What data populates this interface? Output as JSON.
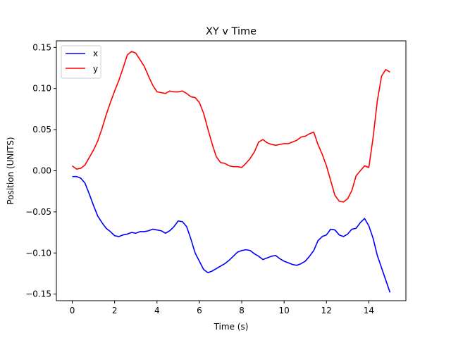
{
  "chart_data": {
    "type": "line",
    "title": "XY v Time",
    "xlabel": "Time (s)",
    "ylabel": "Position (UNITS)",
    "xlim": [
      -0.75,
      15.75
    ],
    "ylim": [
      -0.158,
      0.158
    ],
    "xticks": [
      0,
      2,
      4,
      6,
      8,
      10,
      12,
      14
    ],
    "yticks": [
      -0.15,
      -0.1,
      -0.05,
      0.0,
      0.05,
      0.1,
      0.15
    ],
    "ytick_labels": [
      "−0.15",
      "−0.10",
      "−0.05",
      "0.00",
      "0.05",
      "0.10",
      "0.15"
    ],
    "grid": false,
    "legend_position": "top-left",
    "series": [
      {
        "name": "x",
        "color": "#0000ff",
        "x": [
          0,
          0.2,
          0.4,
          0.6,
          0.8,
          1.0,
          1.2,
          1.4,
          1.6,
          1.8,
          2.0,
          2.2,
          2.4,
          2.6,
          2.8,
          3.0,
          3.2,
          3.4,
          3.6,
          3.8,
          4.0,
          4.2,
          4.4,
          4.6,
          4.8,
          5.0,
          5.2,
          5.4,
          5.6,
          5.8,
          6.0,
          6.2,
          6.4,
          6.6,
          6.8,
          7.0,
          7.2,
          7.4,
          7.6,
          7.8,
          8.0,
          8.2,
          8.4,
          8.6,
          8.8,
          9.0,
          9.2,
          9.4,
          9.6,
          9.8,
          10.0,
          10.2,
          10.4,
          10.6,
          10.8,
          11.0,
          11.2,
          11.4,
          11.6,
          11.8,
          12.0,
          12.2,
          12.4,
          12.6,
          12.8,
          13.0,
          13.2,
          13.4,
          13.6,
          13.8,
          14.0,
          14.2,
          14.4,
          14.6,
          14.8,
          15.0
        ],
        "y": [
          -0.007,
          -0.007,
          -0.009,
          -0.015,
          -0.028,
          -0.042,
          -0.055,
          -0.063,
          -0.07,
          -0.074,
          -0.079,
          -0.08,
          -0.078,
          -0.077,
          -0.075,
          -0.076,
          -0.074,
          -0.074,
          -0.073,
          -0.071,
          -0.072,
          -0.073,
          -0.076,
          -0.073,
          -0.068,
          -0.061,
          -0.062,
          -0.068,
          -0.083,
          -0.1,
          -0.11,
          -0.12,
          -0.124,
          -0.122,
          -0.119,
          -0.116,
          -0.113,
          -0.109,
          -0.104,
          -0.099,
          -0.097,
          -0.096,
          -0.097,
          -0.101,
          -0.104,
          -0.108,
          -0.106,
          -0.104,
          -0.103,
          -0.107,
          -0.11,
          -0.112,
          -0.114,
          -0.115,
          -0.113,
          -0.11,
          -0.104,
          -0.097,
          -0.085,
          -0.08,
          -0.078,
          -0.071,
          -0.072,
          -0.078,
          -0.08,
          -0.077,
          -0.071,
          -0.07,
          -0.063,
          -0.058,
          -0.067,
          -0.082,
          -0.103,
          -0.118,
          -0.133,
          -0.148
        ]
      },
      {
        "name": "y",
        "color": "#ff0000",
        "x": [
          0,
          0.2,
          0.4,
          0.6,
          0.8,
          1.0,
          1.2,
          1.4,
          1.6,
          1.8,
          2.0,
          2.2,
          2.4,
          2.6,
          2.8,
          3.0,
          3.2,
          3.4,
          3.6,
          3.8,
          4.0,
          4.2,
          4.4,
          4.6,
          4.8,
          5.0,
          5.2,
          5.4,
          5.6,
          5.8,
          6.0,
          6.2,
          6.4,
          6.6,
          6.8,
          7.0,
          7.2,
          7.4,
          7.6,
          7.8,
          8.0,
          8.2,
          8.4,
          8.6,
          8.8,
          9.0,
          9.2,
          9.4,
          9.6,
          9.8,
          10.0,
          10.2,
          10.4,
          10.6,
          10.8,
          11.0,
          11.2,
          11.4,
          11.6,
          11.8,
          12.0,
          12.2,
          12.4,
          12.6,
          12.8,
          13.0,
          13.2,
          13.4,
          13.6,
          13.8,
          14.0,
          14.2,
          14.4,
          14.6,
          14.8,
          15.0
        ],
        "y": [
          0.006,
          0.002,
          0.003,
          0.007,
          0.016,
          0.025,
          0.036,
          0.051,
          0.068,
          0.083,
          0.097,
          0.11,
          0.125,
          0.141,
          0.145,
          0.143,
          0.135,
          0.127,
          0.115,
          0.104,
          0.096,
          0.095,
          0.094,
          0.097,
          0.096,
          0.096,
          0.097,
          0.094,
          0.09,
          0.089,
          0.083,
          0.07,
          0.051,
          0.033,
          0.017,
          0.01,
          0.009,
          0.006,
          0.005,
          0.005,
          0.004,
          0.009,
          0.015,
          0.023,
          0.035,
          0.038,
          0.034,
          0.032,
          0.031,
          0.032,
          0.033,
          0.033,
          0.035,
          0.037,
          0.041,
          0.042,
          0.045,
          0.047,
          0.032,
          0.02,
          0.006,
          -0.012,
          -0.03,
          -0.037,
          -0.038,
          -0.034,
          -0.024,
          -0.006,
          0.0,
          0.006,
          0.004,
          0.04,
          0.085,
          0.115,
          0.123,
          0.12
        ]
      }
    ]
  }
}
